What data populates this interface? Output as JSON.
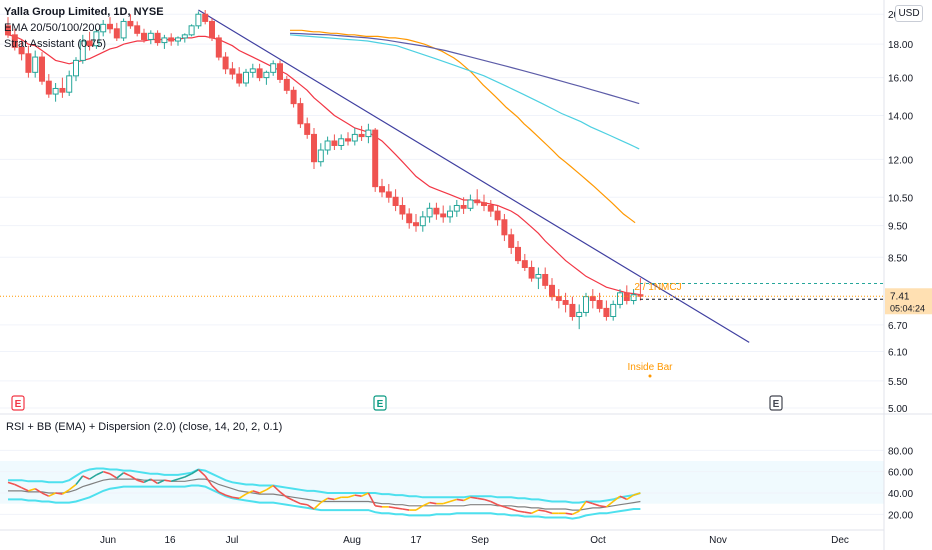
{
  "legend": {
    "symbol": "Yalla Group Limited, 1D, NYSE",
    "line2": "EMA 20/50/100/200",
    "line3": "Strat Assistant (0.75)"
  },
  "currency_button": "USD",
  "price_axis": {
    "ticks": [
      "20.00",
      "18.00",
      "16.00",
      "14.00",
      "12.00",
      "10.50",
      "9.50",
      "8.50",
      "6.70",
      "6.10",
      "5.50",
      "5.00"
    ],
    "tick_values": [
      20.0,
      18.0,
      16.0,
      14.0,
      12.0,
      10.5,
      9.5,
      8.5,
      6.7,
      6.1,
      5.5,
      5.0
    ],
    "scale": "log",
    "last_price": "7.41",
    "countdown": "05:04:24"
  },
  "time_axis": {
    "labels": [
      "Jun",
      "16",
      "Jul",
      "Aug",
      "17",
      "Sep",
      "Oct",
      "Nov",
      "Dec"
    ]
  },
  "annotations": {
    "inside_bar": "Inside Bar",
    "candle_label": "2 / 1NMCJ"
  },
  "earnings_markers": [
    {
      "letter": "E",
      "color": "#f23645"
    },
    {
      "letter": "E",
      "color": "#089981"
    },
    {
      "letter": "E",
      "color": "#434651"
    }
  ],
  "rsi_panel": {
    "legend": "RSI + BB (EMA) + Dispersion (2.0) (close, 14, 20, 2, 0.1)",
    "ticks": [
      "80.00",
      "60.00",
      "40.00",
      "20.00"
    ],
    "tick_values": [
      80,
      60,
      40,
      20
    ]
  },
  "colors": {
    "bull": "#26a69a",
    "bear": "#ef5350",
    "ema20": "#f23645",
    "ema50": "#ff9800",
    "ema100": "#4dd0e1",
    "ema200": "#5c5ca8",
    "trendline": "#3f3fa0",
    "rsi_band": "#4de0ee",
    "rsi_basis": "#808080",
    "rsi_fill": "#e1f5fe"
  },
  "chart_data": {
    "type": "candlestick",
    "scale": "log",
    "ylim": [
      5.0,
      20.3
    ],
    "candles": [
      [
        19.2,
        19.8,
        18.4,
        18.6
      ],
      [
        18.6,
        19.0,
        17.6,
        17.8
      ],
      [
        17.8,
        18.3,
        17.0,
        17.4
      ],
      [
        17.4,
        17.9,
        16.0,
        16.3
      ],
      [
        16.3,
        17.6,
        16.0,
        17.2
      ],
      [
        17.2,
        17.5,
        15.6,
        15.8
      ],
      [
        15.8,
        16.2,
        14.9,
        15.1
      ],
      [
        15.1,
        15.7,
        14.7,
        15.4
      ],
      [
        15.4,
        16.0,
        14.9,
        15.2
      ],
      [
        15.2,
        16.4,
        15.0,
        16.1
      ],
      [
        16.1,
        17.2,
        15.8,
        17.0
      ],
      [
        17.0,
        18.6,
        16.8,
        18.2
      ],
      [
        18.2,
        18.8,
        17.6,
        17.9
      ],
      [
        17.9,
        19.0,
        17.7,
        18.8
      ],
      [
        18.8,
        19.6,
        18.5,
        19.3
      ],
      [
        19.3,
        19.8,
        18.7,
        19.0
      ],
      [
        19.0,
        19.4,
        18.2,
        18.4
      ],
      [
        18.4,
        19.7,
        18.2,
        19.5
      ],
      [
        19.5,
        20.0,
        19.0,
        19.2
      ],
      [
        19.2,
        19.5,
        18.5,
        18.7
      ],
      [
        18.7,
        19.0,
        18.1,
        18.3
      ],
      [
        18.3,
        18.9,
        18.0,
        18.7
      ],
      [
        18.7,
        18.9,
        17.9,
        18.1
      ],
      [
        18.1,
        18.6,
        17.7,
        18.4
      ],
      [
        18.4,
        18.7,
        17.9,
        18.2
      ],
      [
        18.2,
        18.5,
        17.9,
        18.4
      ],
      [
        18.4,
        18.7,
        18.1,
        18.6
      ],
      [
        18.6,
        19.3,
        18.5,
        19.2
      ],
      [
        19.2,
        20.2,
        19.0,
        20.0
      ],
      [
        20.0,
        20.3,
        19.3,
        19.5
      ],
      [
        19.5,
        19.7,
        18.2,
        18.4
      ],
      [
        18.4,
        18.6,
        17.0,
        17.2
      ],
      [
        17.2,
        17.5,
        16.2,
        16.5
      ],
      [
        16.5,
        16.9,
        15.9,
        16.2
      ],
      [
        16.2,
        16.6,
        15.5,
        15.7
      ],
      [
        15.7,
        16.5,
        15.5,
        16.3
      ],
      [
        16.3,
        16.8,
        16.0,
        16.5
      ],
      [
        16.5,
        16.8,
        15.8,
        16.0
      ],
      [
        16.0,
        16.4,
        15.6,
        16.3
      ],
      [
        16.3,
        17.0,
        16.1,
        16.8
      ],
      [
        16.8,
        17.0,
        15.7,
        15.9
      ],
      [
        15.9,
        16.1,
        15.1,
        15.3
      ],
      [
        15.3,
        15.5,
        14.4,
        14.6
      ],
      [
        14.6,
        14.9,
        13.4,
        13.6
      ],
      [
        13.6,
        13.9,
        12.9,
        13.1
      ],
      [
        13.1,
        13.4,
        11.6,
        11.9
      ],
      [
        11.9,
        12.7,
        11.7,
        12.4
      ],
      [
        12.4,
        13.0,
        12.2,
        12.8
      ],
      [
        12.8,
        13.1,
        12.4,
        12.6
      ],
      [
        12.6,
        13.1,
        12.4,
        12.9
      ],
      [
        12.9,
        13.2,
        12.6,
        12.8
      ],
      [
        12.8,
        13.4,
        12.6,
        13.1
      ],
      [
        13.1,
        13.5,
        12.8,
        13.0
      ],
      [
        13.0,
        13.6,
        12.7,
        13.3
      ],
      [
        13.3,
        13.4,
        10.7,
        10.9
      ],
      [
        10.9,
        11.2,
        10.5,
        10.7
      ],
      [
        10.7,
        11.0,
        10.3,
        10.5
      ],
      [
        10.5,
        10.8,
        10.0,
        10.2
      ],
      [
        10.2,
        10.5,
        9.7,
        9.9
      ],
      [
        9.9,
        10.1,
        9.4,
        9.6
      ],
      [
        9.6,
        9.9,
        9.3,
        9.5
      ],
      [
        9.5,
        10.0,
        9.3,
        9.8
      ],
      [
        9.8,
        10.3,
        9.6,
        10.1
      ],
      [
        10.1,
        10.3,
        9.7,
        9.9
      ],
      [
        9.9,
        10.2,
        9.6,
        9.8
      ],
      [
        9.8,
        10.2,
        9.6,
        10.0
      ],
      [
        10.0,
        10.4,
        9.8,
        10.2
      ],
      [
        10.2,
        10.5,
        9.9,
        10.1
      ],
      [
        10.1,
        10.6,
        10.0,
        10.4
      ],
      [
        10.4,
        10.8,
        10.2,
        10.3
      ],
      [
        10.3,
        10.6,
        10.0,
        10.2
      ],
      [
        10.2,
        10.4,
        9.8,
        10.0
      ],
      [
        10.0,
        10.2,
        9.5,
        9.7
      ],
      [
        9.7,
        9.9,
        9.0,
        9.2
      ],
      [
        9.2,
        9.4,
        8.6,
        8.8
      ],
      [
        8.8,
        9.0,
        8.3,
        8.4
      ],
      [
        8.4,
        8.6,
        8.1,
        8.2
      ],
      [
        8.2,
        8.4,
        7.8,
        7.9
      ],
      [
        7.9,
        8.2,
        7.6,
        8.0
      ],
      [
        8.0,
        8.2,
        7.6,
        7.7
      ],
      [
        7.7,
        7.9,
        7.3,
        7.4
      ],
      [
        7.4,
        7.6,
        7.1,
        7.3
      ],
      [
        7.3,
        7.5,
        7.0,
        7.2
      ],
      [
        7.2,
        7.4,
        6.8,
        6.9
      ],
      [
        6.9,
        7.2,
        6.6,
        7.0
      ],
      [
        7.0,
        7.5,
        6.9,
        7.4
      ],
      [
        7.4,
        7.6,
        7.1,
        7.3
      ],
      [
        7.3,
        7.5,
        7.0,
        7.1
      ],
      [
        7.1,
        7.3,
        6.8,
        6.9
      ],
      [
        6.9,
        7.3,
        6.8,
        7.2
      ],
      [
        7.2,
        7.6,
        7.1,
        7.5
      ],
      [
        7.5,
        7.7,
        7.2,
        7.3
      ],
      [
        7.3,
        7.6,
        7.2,
        7.45
      ],
      [
        7.45,
        7.9,
        7.3,
        7.41
      ]
    ],
    "ema20": [
      18.6,
      18.5,
      18.3,
      18.0,
      17.9,
      17.6,
      17.3,
      17.0,
      16.9,
      16.8,
      16.9,
      17.0,
      17.1,
      17.3,
      17.5,
      17.7,
      17.8,
      18.0,
      18.1,
      18.2,
      18.2,
      18.3,
      18.3,
      18.3,
      18.3,
      18.3,
      18.4,
      18.4,
      18.5,
      18.5,
      18.4,
      18.3,
      18.1,
      17.9,
      17.6,
      17.4,
      17.2,
      17.0,
      16.8,
      16.6,
      16.4,
      16.2,
      15.9,
      15.6,
      15.3,
      14.9,
      14.6,
      14.3,
      14.0,
      13.8,
      13.6,
      13.4,
      13.3,
      13.2,
      13.0,
      12.8,
      12.5,
      12.2,
      11.9,
      11.6,
      11.3,
      11.1,
      10.9,
      10.8,
      10.7,
      10.6,
      10.5,
      10.4,
      10.4,
      10.35,
      10.3,
      10.25,
      10.2,
      10.1,
      10.0,
      9.85,
      9.65,
      9.45,
      9.25,
      9.0,
      8.8,
      8.6,
      8.4,
      8.25,
      8.1,
      7.95,
      7.85,
      7.75,
      7.65,
      7.6,
      7.55,
      7.5,
      7.48,
      7.45
    ],
    "ema50": [
      18.9,
      18.9,
      18.9,
      18.85,
      18.8,
      18.8,
      18.75,
      18.7,
      18.7,
      18.65,
      18.6,
      18.6,
      18.55,
      18.5,
      18.5,
      18.5,
      18.45,
      18.4,
      18.4,
      18.35,
      18.3,
      18.2,
      18.1,
      18.0,
      17.85,
      17.7,
      17.55,
      17.35,
      17.15,
      16.9,
      16.6,
      16.3,
      15.95,
      15.6,
      15.3,
      15.0,
      14.7,
      14.4,
      14.15,
      13.9,
      13.6,
      13.35,
      13.1,
      12.85,
      12.6,
      12.35,
      12.1,
      11.9,
      11.7,
      11.5,
      11.3,
      11.1,
      10.9,
      10.7,
      10.5,
      10.3,
      10.1,
      9.9,
      9.75,
      9.6
    ],
    "ema100": [
      18.6,
      18.55,
      18.5,
      18.45,
      18.4,
      18.35,
      18.3,
      18.25,
      18.2,
      18.1,
      18.0,
      17.9,
      17.7,
      17.5,
      17.3,
      17.1,
      16.9,
      16.7,
      16.5,
      16.3,
      16.1,
      15.85,
      15.6,
      15.35,
      15.1,
      14.85,
      14.6,
      14.35,
      14.1,
      13.9,
      13.7,
      13.45,
      13.25,
      13.05,
      12.85,
      12.65,
      12.45
    ],
    "ema200": [
      18.7,
      18.68,
      18.65,
      18.62,
      18.6,
      18.55,
      18.5,
      18.45,
      18.4,
      18.33,
      18.25,
      18.15,
      18.05,
      17.95,
      17.85,
      17.72,
      17.6,
      17.45,
      17.3,
      17.15,
      17.0,
      16.85,
      16.7,
      16.55,
      16.4,
      16.25,
      16.1,
      15.95,
      15.8,
      15.65,
      15.5,
      15.35,
      15.2,
      15.05,
      14.9,
      14.75,
      14.6
    ],
    "rsi": [
      50,
      48,
      45,
      42,
      44,
      40,
      37,
      40,
      39,
      43,
      48,
      56,
      53,
      57,
      60,
      58,
      54,
      59,
      56,
      52,
      50,
      53,
      49,
      52,
      51,
      53,
      55,
      58,
      62,
      56,
      47,
      41,
      38,
      36,
      35,
      39,
      42,
      40,
      43,
      47,
      41,
      36,
      33,
      30,
      29,
      25,
      31,
      35,
      34,
      36,
      36,
      38,
      37,
      40,
      28,
      27,
      27,
      26,
      25,
      24,
      24,
      28,
      31,
      30,
      30,
      32,
      34,
      33,
      36,
      35,
      34,
      32,
      29,
      27,
      25,
      23,
      22,
      21,
      24,
      23,
      21,
      21,
      21,
      20,
      23,
      32,
      30,
      28,
      27,
      32,
      37,
      34,
      38,
      40
    ],
    "rsi_upper": [
      52,
      52,
      52,
      51,
      51,
      51,
      50,
      50,
      50,
      52,
      56,
      60,
      62,
      63,
      63,
      62,
      62,
      61,
      61,
      60,
      59,
      58,
      58,
      57,
      57,
      57,
      58,
      59,
      62,
      61,
      58,
      55,
      52,
      50,
      49,
      48,
      48,
      47,
      47,
      47,
      46,
      45,
      44,
      43,
      42,
      42,
      41,
      40,
      40,
      40,
      40,
      40,
      40,
      40,
      40,
      39,
      39,
      38,
      38,
      37,
      37,
      36,
      36,
      36,
      36,
      36,
      36,
      36,
      37,
      37,
      37,
      37,
      36,
      36,
      36,
      35,
      35,
      34,
      34,
      33,
      32,
      32,
      32,
      31,
      31,
      32,
      32,
      32,
      33,
      34,
      36,
      37,
      38,
      40
    ],
    "rsi_lower": [
      34,
      34,
      34,
      33,
      33,
      32,
      32,
      31,
      31,
      31,
      32,
      34,
      36,
      39,
      42,
      44,
      45,
      46,
      46,
      46,
      46,
      46,
      46,
      46,
      46,
      46,
      46,
      47,
      47,
      46,
      43,
      40,
      37,
      35,
      34,
      33,
      32,
      31,
      31,
      31,
      30,
      29,
      28,
      27,
      26,
      25,
      24,
      24,
      24,
      24,
      24,
      24,
      24,
      24,
      22,
      21,
      21,
      20,
      20,
      19,
      19,
      19,
      19,
      20,
      20,
      20,
      21,
      21,
      21,
      21,
      21,
      21,
      20,
      20,
      19,
      19,
      18,
      18,
      18,
      17,
      17,
      17,
      17,
      16,
      17,
      19,
      20,
      21,
      21,
      22,
      23,
      24,
      25,
      25
    ],
    "rsi_basis": [
      42,
      42,
      42,
      41,
      41,
      41,
      40,
      40,
      40,
      41,
      43,
      46,
      48,
      50,
      52,
      53,
      53,
      53,
      53,
      53,
      52,
      52,
      52,
      52,
      51,
      51,
      51,
      52,
      53,
      53,
      51,
      48,
      46,
      44,
      42,
      41,
      40,
      39,
      39,
      39,
      38,
      37,
      36,
      35,
      34,
      33,
      32,
      32,
      32,
      32,
      32,
      32,
      32,
      32,
      31,
      30,
      30,
      29,
      29,
      28,
      28,
      28,
      28,
      28,
      28,
      28,
      28,
      28,
      29,
      29,
      29,
      29,
      28,
      28,
      28,
      27,
      27,
      26,
      26,
      25,
      25,
      25,
      25,
      24,
      24,
      25,
      26,
      26,
      27,
      28,
      29,
      30,
      31,
      32
    ],
    "trendline": {
      "from": {
        "index": 28,
        "price": 20.3
      },
      "to": {
        "index": 109,
        "price": 6.3
      }
    },
    "last_price_line": 7.41,
    "dashed_levels": [
      7.75,
      7.41
    ]
  }
}
